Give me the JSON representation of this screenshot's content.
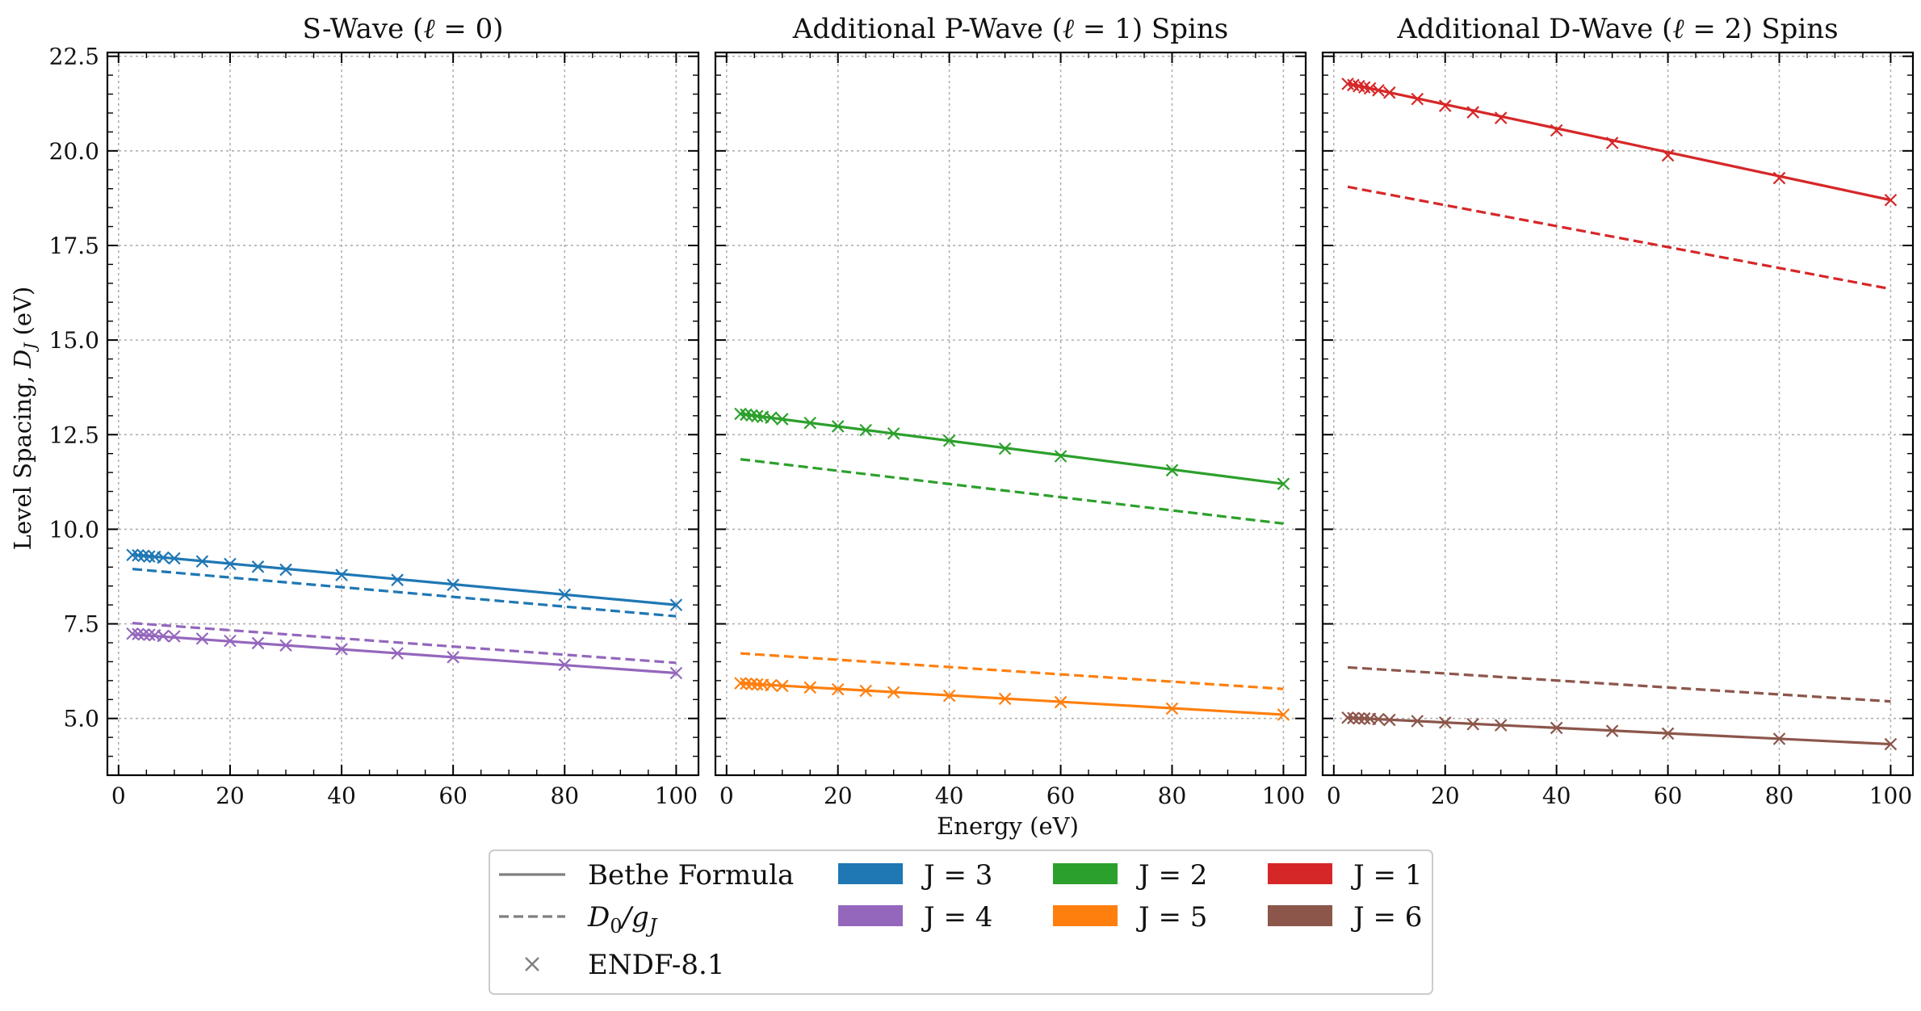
{
  "chart_data": [
    {
      "type": "line",
      "title": "S-Wave (ℓ = 0)",
      "xlabel": "",
      "ylabel": "Level Spacing, D_J (eV)",
      "xlim": [
        -2,
        104
      ],
      "ylim": [
        3.5,
        22.6
      ],
      "xticks": [
        "0",
        "20",
        "40",
        "60",
        "80",
        "100"
      ],
      "yticks": [
        "5.0",
        "7.5",
        "10.0",
        "12.5",
        "15.0",
        "17.5",
        "20.0",
        "22.5"
      ],
      "grid": true,
      "series": [
        {
          "name": "J = 3",
          "color": "#1f77b4",
          "style": "solid",
          "x": [
            2.5,
            100
          ],
          "y": [
            9.33,
            8.0
          ]
        },
        {
          "name": "J = 3",
          "color": "#1f77b4",
          "style": "dashed",
          "x": [
            2.5,
            100
          ],
          "y": [
            8.95,
            7.7
          ]
        },
        {
          "name": "J = 3",
          "color": "#1f77b4",
          "style": "markers",
          "x": [
            2.5,
            3.5,
            4.5,
            5.5,
            6.5,
            8,
            10,
            15,
            20,
            25,
            30,
            40,
            50,
            60,
            80,
            100
          ],
          "y": [
            9.32,
            9.31,
            9.3,
            9.28,
            9.27,
            9.25,
            9.23,
            9.15,
            9.08,
            9.01,
            8.93,
            8.79,
            8.66,
            8.53,
            8.27,
            8.0
          ]
        },
        {
          "name": "J = 4",
          "color": "#9467bd",
          "style": "solid",
          "x": [
            2.5,
            100
          ],
          "y": [
            7.22,
            6.2
          ]
        },
        {
          "name": "J = 4",
          "color": "#9467bd",
          "style": "dashed",
          "x": [
            2.5,
            100
          ],
          "y": [
            7.52,
            6.47
          ]
        },
        {
          "name": "J = 4",
          "color": "#9467bd",
          "style": "markers",
          "x": [
            2.5,
            3.5,
            4.5,
            5.5,
            6.5,
            8,
            10,
            15,
            20,
            25,
            30,
            40,
            50,
            60,
            80,
            100
          ],
          "y": [
            7.24,
            7.23,
            7.22,
            7.21,
            7.2,
            7.18,
            7.17,
            7.11,
            7.05,
            6.99,
            6.93,
            6.83,
            6.72,
            6.62,
            6.42,
            6.2
          ]
        }
      ]
    },
    {
      "type": "line",
      "title": "Additional P-Wave (ℓ = 1) Spins",
      "xlabel": "Energy (eV)",
      "ylabel": "",
      "xlim": [
        -2,
        104
      ],
      "ylim": [
        3.5,
        22.6
      ],
      "xticks": [
        "0",
        "20",
        "40",
        "60",
        "80",
        "100"
      ],
      "grid": true,
      "series": [
        {
          "name": "J = 2",
          "color": "#2ca02c",
          "style": "solid",
          "x": [
            2.5,
            100
          ],
          "y": [
            13.05,
            11.2
          ]
        },
        {
          "name": "J = 2",
          "color": "#2ca02c",
          "style": "dashed",
          "x": [
            2.5,
            100
          ],
          "y": [
            11.85,
            10.15
          ]
        },
        {
          "name": "J = 2",
          "color": "#2ca02c",
          "style": "markers",
          "x": [
            2.5,
            3.5,
            4.5,
            5.5,
            6.5,
            8,
            10,
            15,
            20,
            25,
            30,
            40,
            50,
            60,
            80,
            100
          ],
          "y": [
            13.05,
            13.03,
            13.01,
            12.99,
            12.97,
            12.95,
            12.91,
            12.81,
            12.72,
            12.62,
            12.53,
            12.34,
            12.13,
            11.93,
            11.56,
            11.2
          ]
        },
        {
          "name": "J = 5",
          "color": "#ff7f0e",
          "style": "solid",
          "x": [
            2.5,
            100
          ],
          "y": [
            5.93,
            5.1
          ]
        },
        {
          "name": "J = 5",
          "color": "#ff7f0e",
          "style": "dashed",
          "x": [
            2.5,
            100
          ],
          "y": [
            6.72,
            5.78
          ]
        },
        {
          "name": "J = 5",
          "color": "#ff7f0e",
          "style": "markers",
          "x": [
            2.5,
            3.5,
            4.5,
            5.5,
            6.5,
            8,
            10,
            15,
            20,
            25,
            30,
            40,
            50,
            60,
            80,
            100
          ],
          "y": [
            5.93,
            5.92,
            5.91,
            5.9,
            5.89,
            5.88,
            5.86,
            5.82,
            5.77,
            5.73,
            5.69,
            5.6,
            5.52,
            5.43,
            5.26,
            5.1
          ]
        }
      ]
    },
    {
      "type": "line",
      "title": "Additional D-Wave (ℓ = 2) Spins",
      "xlabel": "",
      "ylabel": "",
      "xlim": [
        -2,
        104
      ],
      "ylim": [
        3.5,
        22.6
      ],
      "xticks": [
        "0",
        "20",
        "40",
        "60",
        "80",
        "100"
      ],
      "grid": true,
      "series": [
        {
          "name": "J = 1",
          "color": "#d62728",
          "style": "solid",
          "x": [
            2.5,
            100
          ],
          "y": [
            21.78,
            18.7
          ]
        },
        {
          "name": "J = 1",
          "color": "#d62728",
          "style": "dashed",
          "x": [
            2.5,
            100
          ],
          "y": [
            19.05,
            16.35
          ]
        },
        {
          "name": "J = 1",
          "color": "#d62728",
          "style": "markers",
          "x": [
            2.5,
            3.5,
            4.5,
            5.5,
            6.5,
            8,
            10,
            15,
            20,
            25,
            30,
            40,
            50,
            60,
            80,
            100
          ],
          "y": [
            21.77,
            21.74,
            21.71,
            21.68,
            21.65,
            21.6,
            21.54,
            21.37,
            21.19,
            21.02,
            20.87,
            20.54,
            20.21,
            19.88,
            19.28,
            18.7
          ]
        },
        {
          "name": "J = 6",
          "color": "#8c564b",
          "style": "solid",
          "x": [
            2.5,
            100
          ],
          "y": [
            5.02,
            4.32
          ]
        },
        {
          "name": "J = 6",
          "color": "#8c564b",
          "style": "dashed",
          "x": [
            2.5,
            100
          ],
          "y": [
            6.35,
            5.45
          ]
        },
        {
          "name": "J = 6",
          "color": "#8c564b",
          "style": "markers",
          "x": [
            2.5,
            3.5,
            4.5,
            5.5,
            6.5,
            8,
            10,
            15,
            20,
            25,
            30,
            40,
            50,
            60,
            80,
            100
          ],
          "y": [
            5.02,
            5.01,
            5.0,
            5.0,
            4.99,
            4.98,
            4.96,
            4.93,
            4.89,
            4.85,
            4.82,
            4.75,
            4.67,
            4.6,
            4.46,
            4.32
          ]
        }
      ]
    }
  ],
  "legend": {
    "placement": "bottom-center",
    "style_items": [
      {
        "label": "Bethe Formula",
        "kind": "solid"
      },
      {
        "label": "D0/gJ",
        "kind": "dashed"
      },
      {
        "label": "ENDF-8.1",
        "kind": "marker"
      }
    ],
    "color_items": [
      {
        "label": "J = 3",
        "color": "#1f77b4"
      },
      {
        "label": "J = 4",
        "color": "#9467bd"
      },
      {
        "label": "J = 2",
        "color": "#2ca02c"
      },
      {
        "label": "J = 5",
        "color": "#ff7f0e"
      },
      {
        "label": "J = 1",
        "color": "#d62728"
      },
      {
        "label": "J = 6",
        "color": "#8c564b"
      }
    ]
  }
}
